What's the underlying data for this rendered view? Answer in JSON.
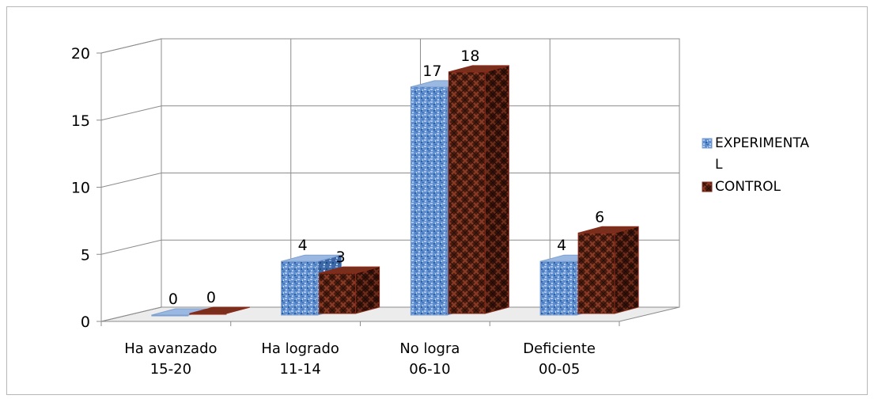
{
  "chart_data": {
    "type": "bar",
    "three_d": true,
    "categories": [
      [
        "Ha avanzado",
        "15-20"
      ],
      [
        "Ha logrado",
        "11-14"
      ],
      [
        "No logra",
        "06-10"
      ],
      [
        "Deficiente",
        "00-05"
      ]
    ],
    "series": [
      {
        "name": [
          "EXPERIMENTA",
          "L"
        ],
        "values": [
          0,
          4,
          17,
          4
        ],
        "color": "#4f81bd",
        "pattern": "blue-texture"
      },
      {
        "name": [
          "CONTROL"
        ],
        "values": [
          0,
          3,
          18,
          6
        ],
        "color": "#6b2a1c",
        "pattern": "brown-weave"
      }
    ],
    "data_labels": [
      [
        "0",
        "4",
        "17",
        "4"
      ],
      [
        "0",
        "3",
        "18",
        "6"
      ]
    ],
    "yticks": [
      "0",
      "5",
      "10",
      "15",
      "20"
    ],
    "ylim": [
      0,
      20
    ],
    "grid": true,
    "legend_position": "right",
    "xlabel": "",
    "ylabel": ""
  }
}
